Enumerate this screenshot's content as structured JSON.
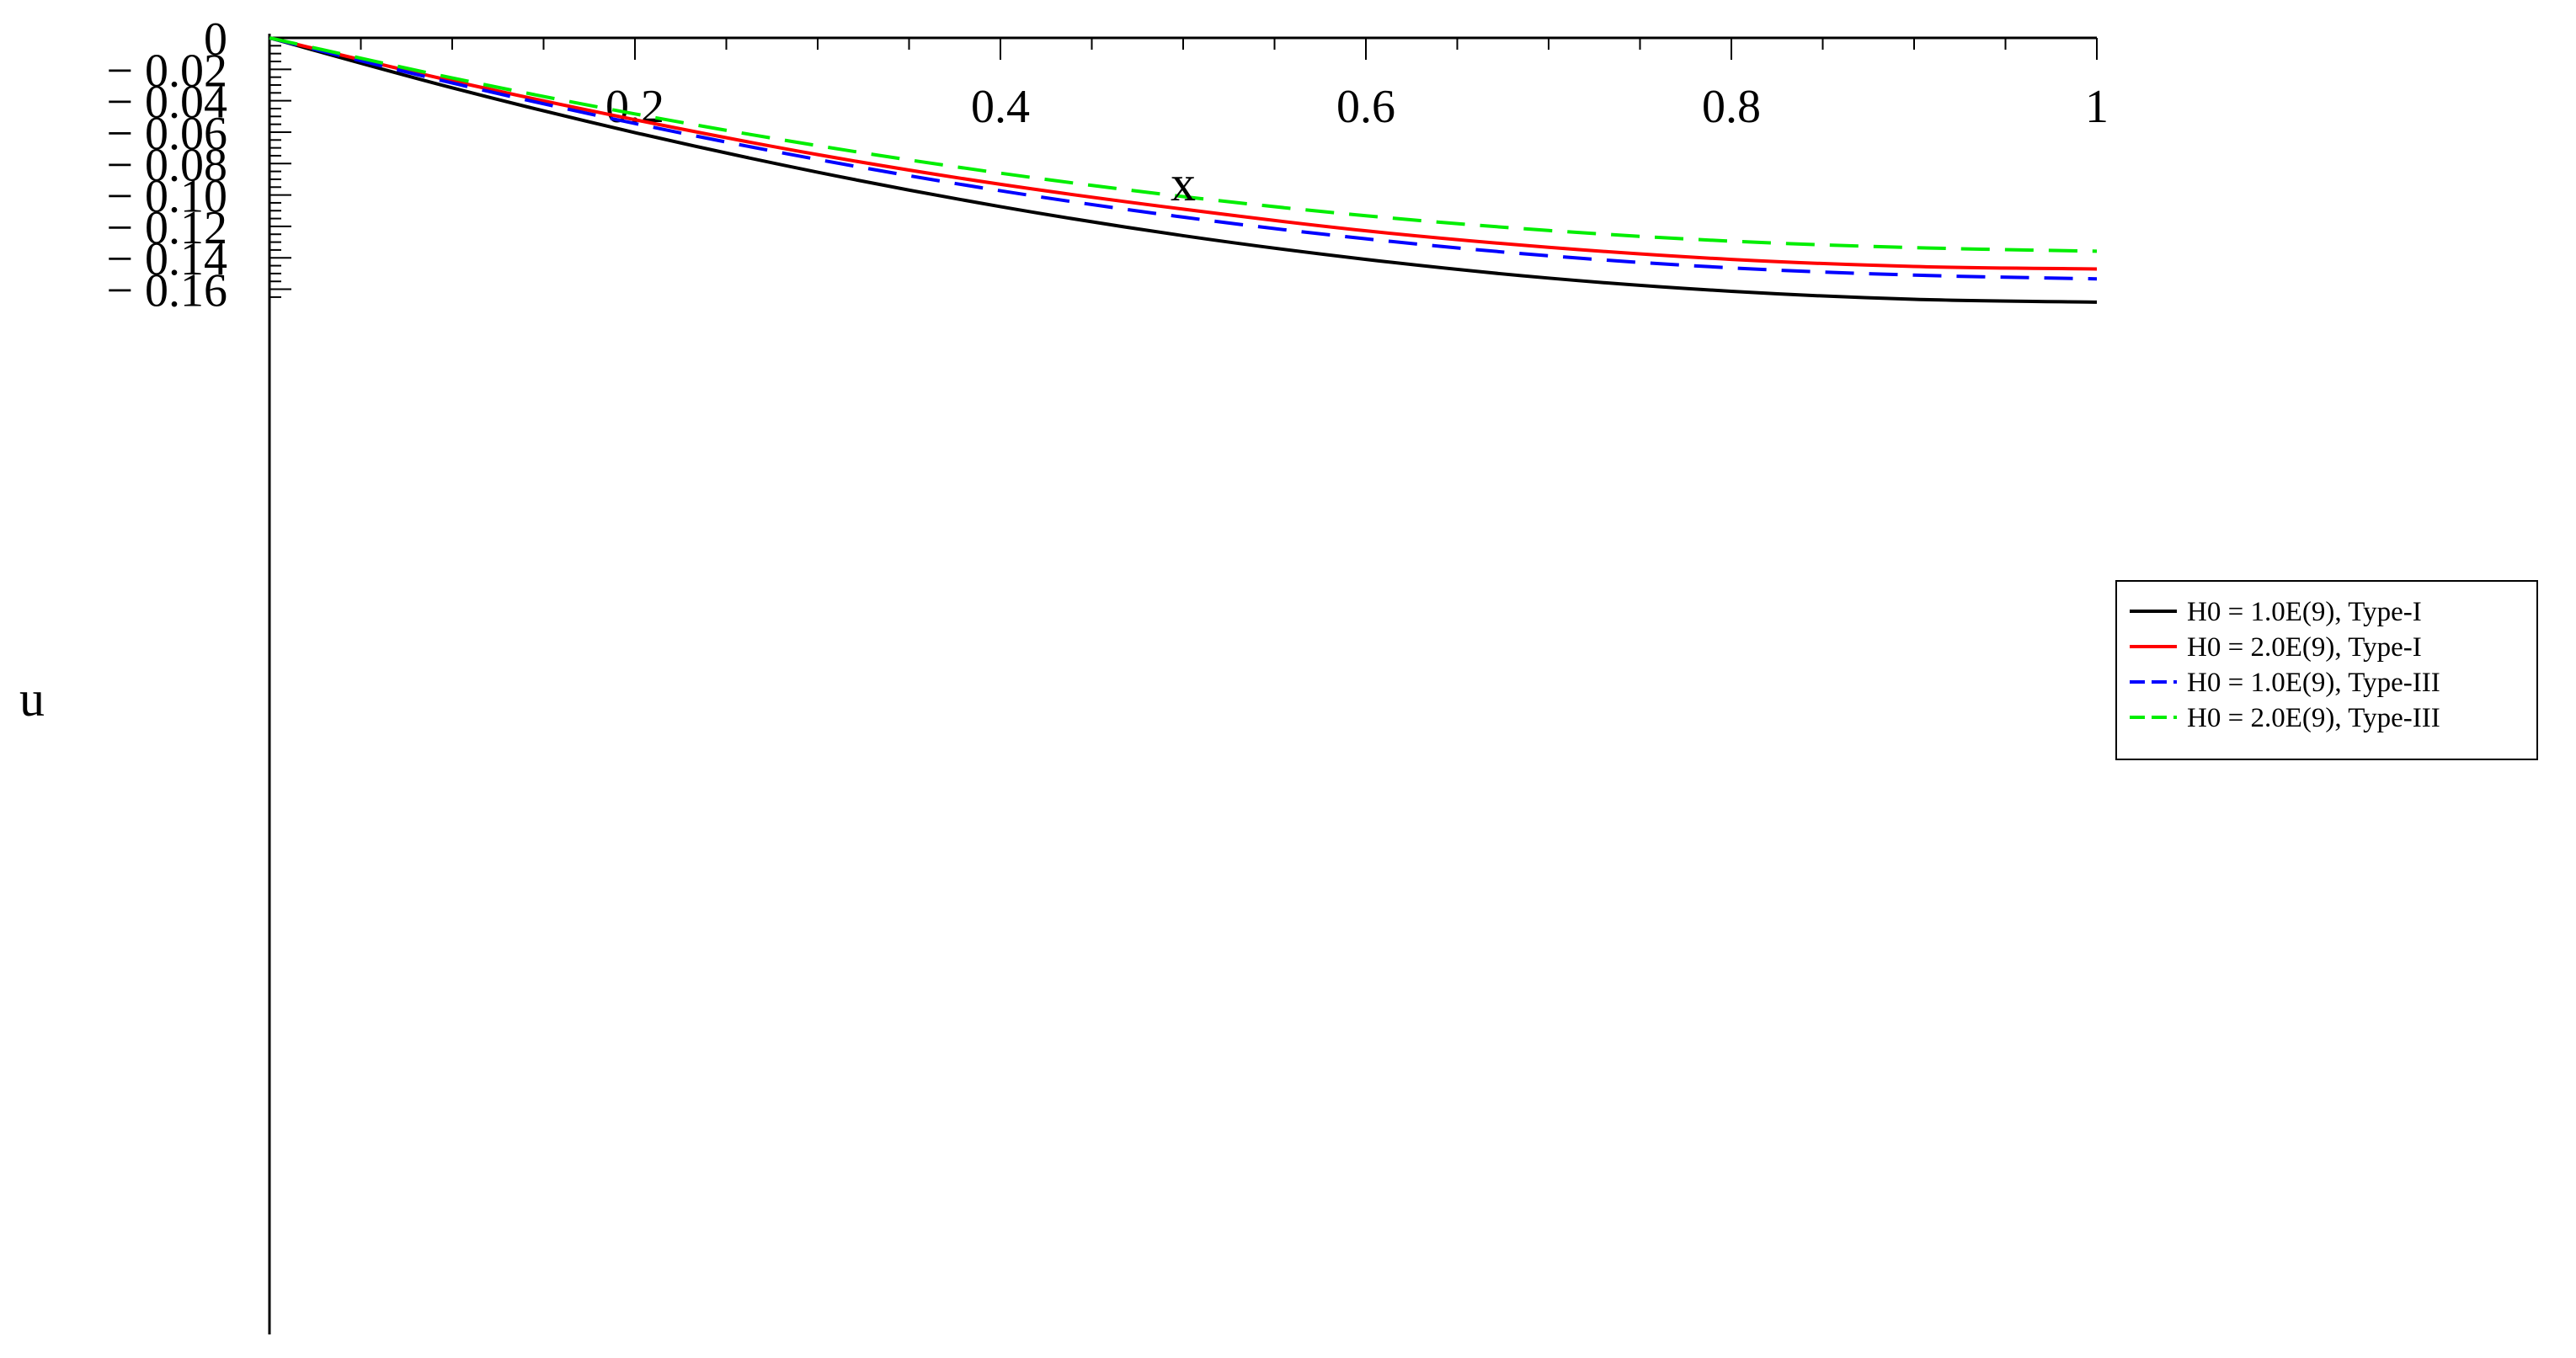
{
  "chart_data": {
    "type": "line",
    "title": "",
    "xlabel": "x",
    "ylabel": "u",
    "xlim": [
      0,
      1
    ],
    "ylim": [
      -0.166,
      0
    ],
    "x_ticks": [
      {
        "value": 0.2,
        "label": "0.2"
      },
      {
        "value": 0.4,
        "label": "0.4"
      },
      {
        "value": 0.6,
        "label": "0.6"
      },
      {
        "value": 0.8,
        "label": "0.8"
      },
      {
        "value": 1.0,
        "label": "1"
      }
    ],
    "y_ticks": [
      {
        "value": 0,
        "label": "0"
      },
      {
        "value": -0.02,
        "label": "− 0.02"
      },
      {
        "value": -0.04,
        "label": "− 0.04"
      },
      {
        "value": -0.06,
        "label": "− 0.06"
      },
      {
        "value": -0.08,
        "label": "− 0.08"
      },
      {
        "value": -0.1,
        "label": "− 0.10"
      },
      {
        "value": -0.12,
        "label": "− 0.12"
      },
      {
        "value": -0.14,
        "label": "− 0.14"
      },
      {
        "value": -0.16,
        "label": "− 0.16"
      }
    ],
    "grid": false,
    "legend_position": "right",
    "series": [
      {
        "name": "H0 = 1.0E(9), Type-I",
        "color": "#000000",
        "dash": "solid",
        "x": [
          0,
          0.1,
          0.2,
          0.3,
          0.4,
          0.5,
          0.6,
          0.7,
          0.8,
          0.9,
          1.0
        ],
        "y": [
          0,
          -0.0318,
          -0.0603,
          -0.0855,
          -0.1074,
          -0.1259,
          -0.141,
          -0.1529,
          -0.1613,
          -0.1664,
          -0.1682
        ]
      },
      {
        "name": "H0 = 2.0E(9), Type-I",
        "color": "#ff0000",
        "dash": "solid",
        "x": [
          0,
          0.1,
          0.2,
          0.3,
          0.4,
          0.5,
          0.6,
          0.7,
          0.8,
          0.9,
          1.0
        ],
        "y": [
          0,
          -0.0274,
          -0.0521,
          -0.0743,
          -0.0932,
          -0.109,
          -0.1228,
          -0.1333,
          -0.141,
          -0.1455,
          -0.1471
        ]
      },
      {
        "name": "H0 = 1.0E(9), Type-III",
        "color": "#0000ff",
        "dash": "dashed",
        "x": [
          0,
          0.1,
          0.2,
          0.3,
          0.4,
          0.5,
          0.6,
          0.7,
          0.8,
          0.9,
          1.0
        ],
        "y": [
          0,
          -0.0287,
          -0.0545,
          -0.0774,
          -0.0973,
          -0.1141,
          -0.1279,
          -0.1387,
          -0.1464,
          -0.151,
          -0.1534
        ]
      },
      {
        "name": "H0 = 2.0E(9), Type-III",
        "color": "#00ee00",
        "dash": "dashed",
        "x": [
          0,
          0.1,
          0.2,
          0.3,
          0.4,
          0.5,
          0.6,
          0.7,
          0.8,
          0.9,
          1.0
        ],
        "y": [
          0,
          -0.0255,
          -0.0484,
          -0.0686,
          -0.0861,
          -0.101,
          -0.1132,
          -0.1226,
          -0.1294,
          -0.1335,
          -0.1358
        ]
      }
    ]
  }
}
